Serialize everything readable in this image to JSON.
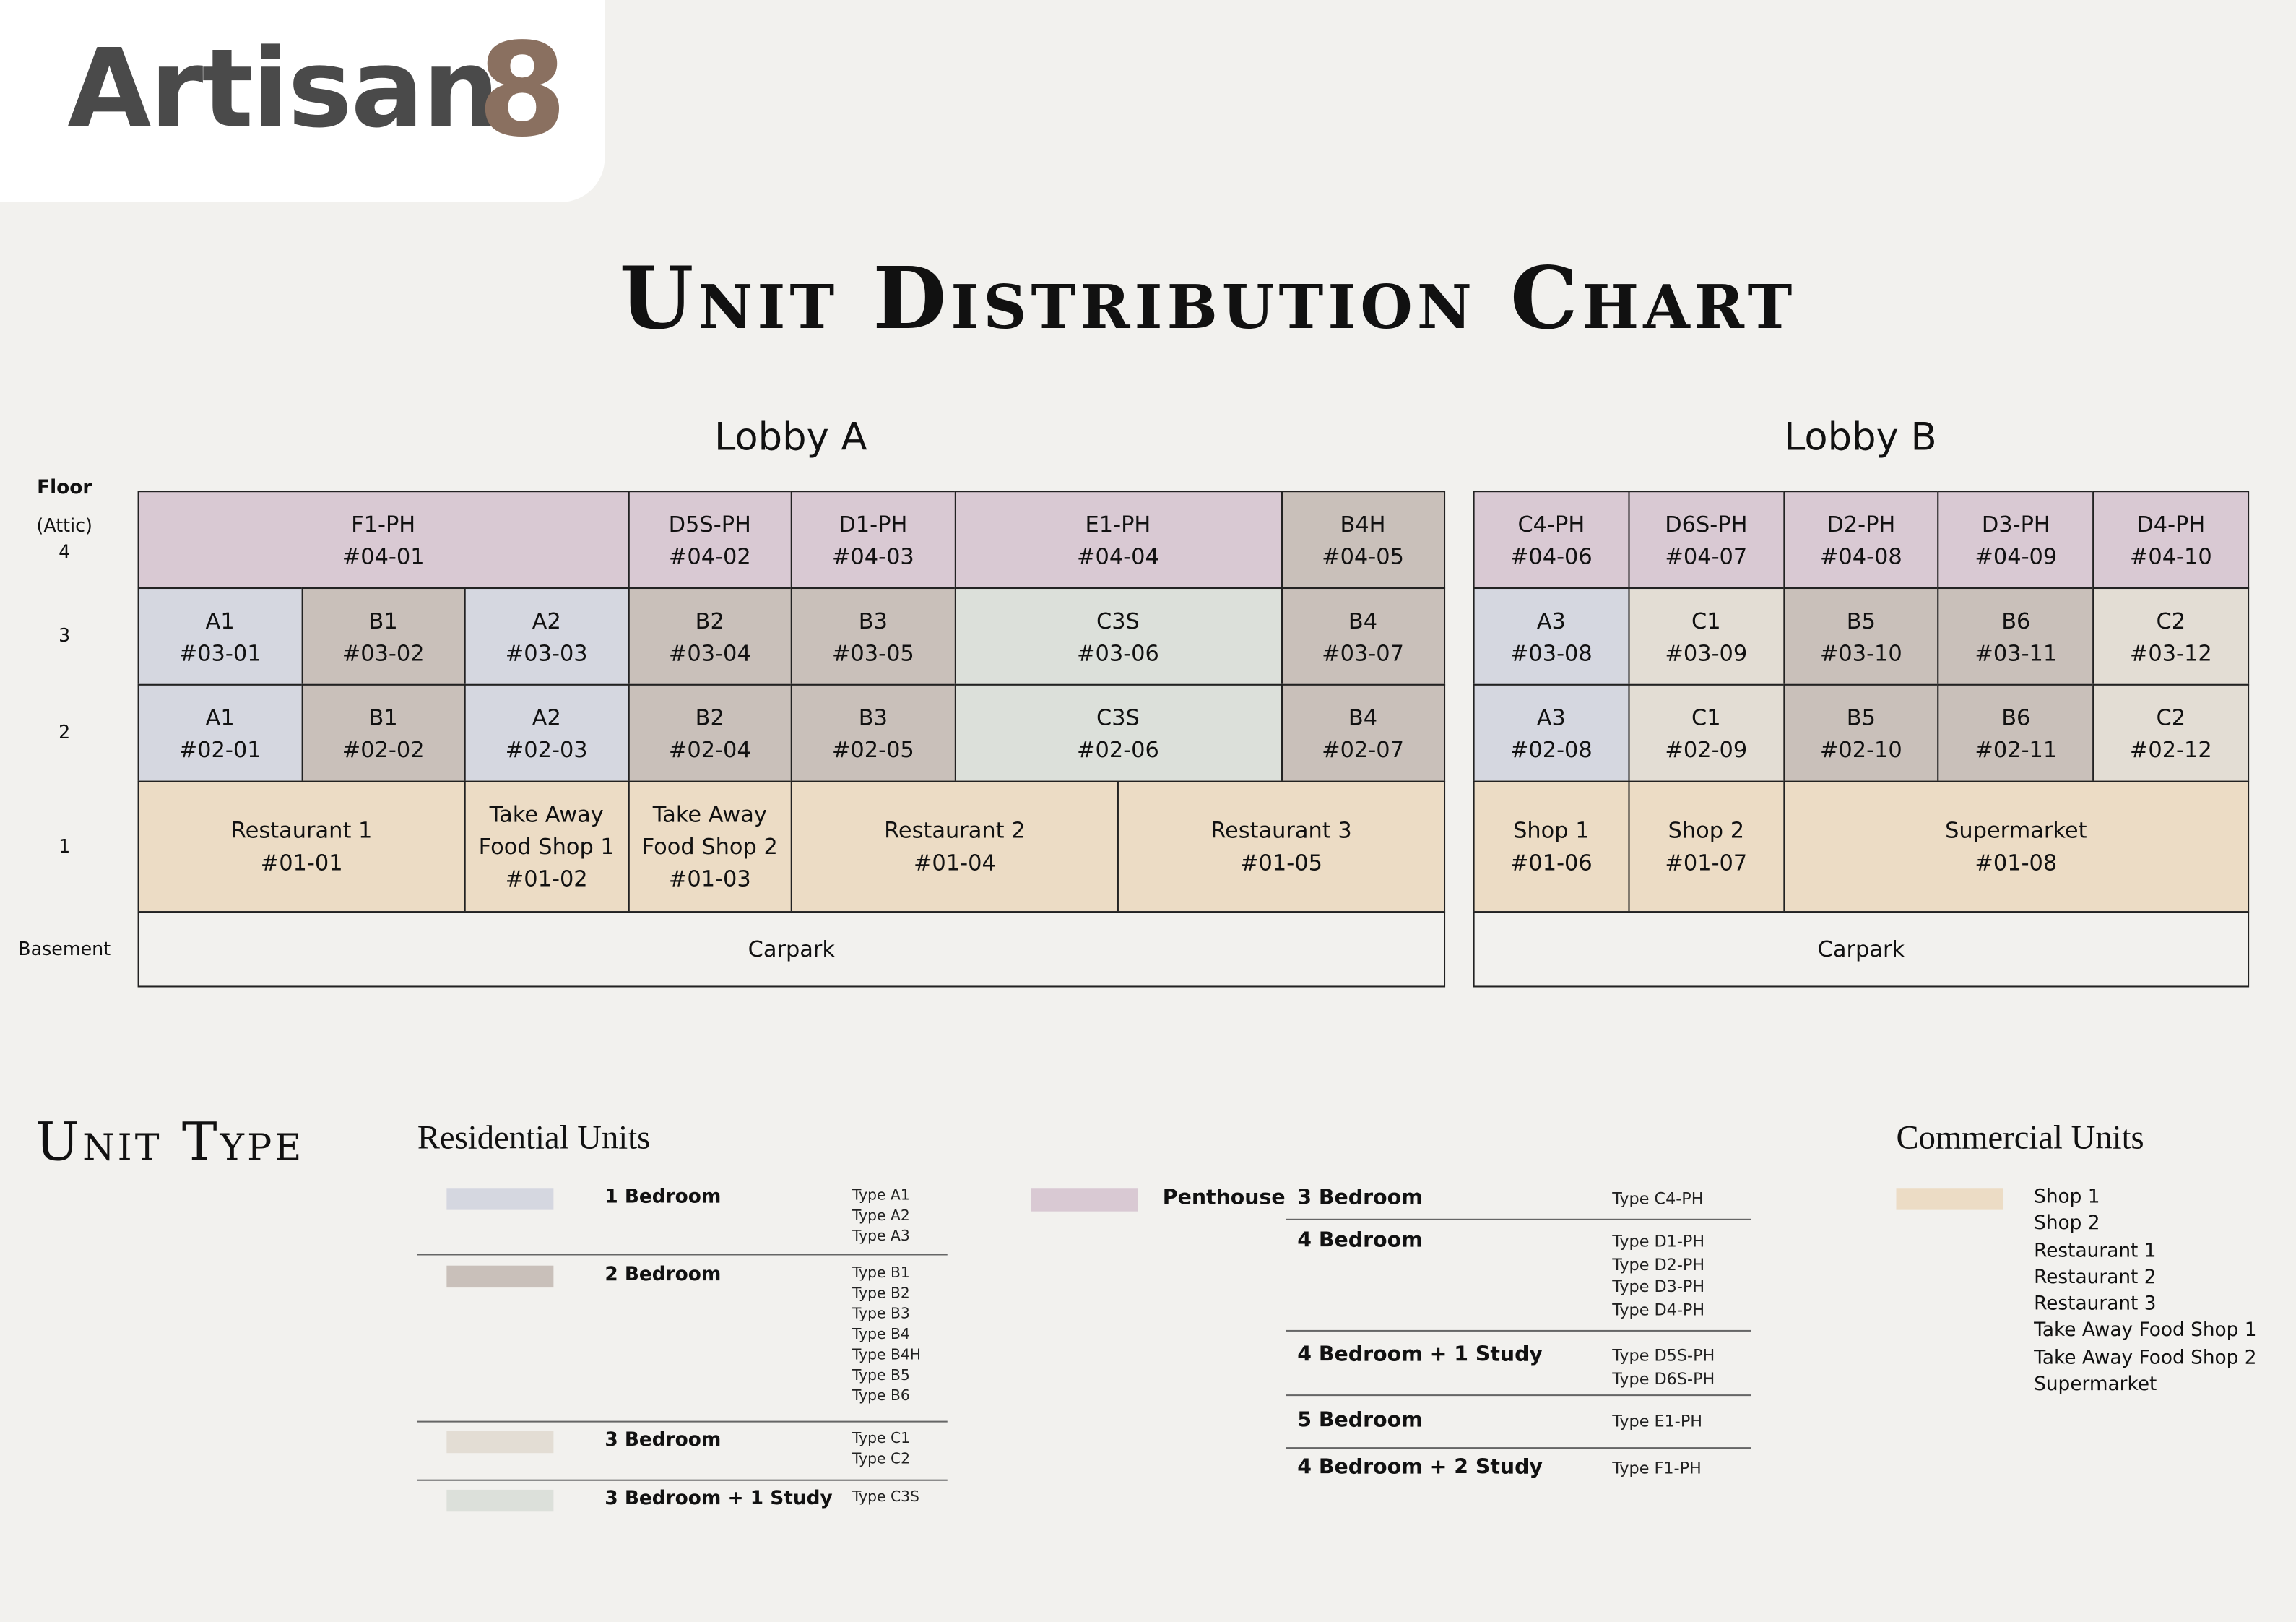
{
  "logo": {
    "text": "Artisan",
    "mark": "8"
  },
  "title": "Unit Distribution Chart",
  "floor_header": "Floor",
  "floors": [
    [
      "(Attic)",
      "4"
    ],
    [
      "3"
    ],
    [
      "2"
    ],
    [
      "1"
    ],
    [
      "Basement"
    ]
  ],
  "lobbies": [
    {
      "name": "Lobby A",
      "rows": [
        [
          {
            "name": "F1-PH",
            "unit": "#04-01",
            "color": "#d9c9d3"
          },
          {
            "name": "D5S-PH",
            "unit": "#04-02",
            "color": "#d9c9d3"
          },
          {
            "name": "D1-PH",
            "unit": "#04-03",
            "color": "#d9c9d3"
          },
          {
            "name": "E1-PH",
            "unit": "#04-04",
            "color": "#d9c9d3"
          },
          {
            "name": "B4H",
            "unit": "#04-05",
            "color": "#c9c0ba"
          }
        ],
        [
          {
            "name": "A1",
            "unit": "#03-01",
            "color": "#d5d7e0"
          },
          {
            "name": "B1",
            "unit": "#03-02",
            "color": "#c9c0ba"
          },
          {
            "name": "A2",
            "unit": "#03-03",
            "color": "#d5d7e0"
          },
          {
            "name": "B2",
            "unit": "#03-04",
            "color": "#c9c0ba"
          },
          {
            "name": "B3",
            "unit": "#03-05",
            "color": "#c9c0ba"
          },
          {
            "name": "C3S",
            "unit": "#03-06",
            "color": "#dce0da"
          },
          {
            "name": "B4",
            "unit": "#03-07",
            "color": "#c9c0ba"
          }
        ],
        [
          {
            "name": "A1",
            "unit": "#02-01",
            "color": "#d5d7e0"
          },
          {
            "name": "B1",
            "unit": "#02-02",
            "color": "#c9c0ba"
          },
          {
            "name": "A2",
            "unit": "#02-03",
            "color": "#d5d7e0"
          },
          {
            "name": "B2",
            "unit": "#02-04",
            "color": "#c9c0ba"
          },
          {
            "name": "B3",
            "unit": "#02-05",
            "color": "#c9c0ba"
          },
          {
            "name": "C3S",
            "unit": "#02-06",
            "color": "#dce0da"
          },
          {
            "name": "B4",
            "unit": "#02-07",
            "color": "#c9c0ba"
          }
        ],
        [
          {
            "name": "Restaurant 1",
            "unit": "#01-01",
            "color": "#ecdcc5"
          },
          {
            "name": "Take Away Food Shop 1",
            "unit": "#01-02",
            "color": "#ecdcc5"
          },
          {
            "name": "Take Away Food Shop 2",
            "unit": "#01-03",
            "color": "#ecdcc5"
          },
          {
            "name": "Restaurant 2",
            "unit": "#01-04",
            "color": "#ecdcc5"
          },
          {
            "name": "Restaurant 3",
            "unit": "#01-05",
            "color": "#ecdcc5"
          }
        ],
        [
          {
            "name": "Carpark",
            "color": "#f2f1ee"
          }
        ]
      ]
    },
    {
      "name": "Lobby B",
      "rows": [
        [
          {
            "name": "C4-PH",
            "unit": "#04-06",
            "color": "#d9c9d3"
          },
          {
            "name": "D6S-PH",
            "unit": "#04-07",
            "color": "#d9c9d3"
          },
          {
            "name": "D2-PH",
            "unit": "#04-08",
            "color": "#d9c9d3"
          },
          {
            "name": "D3-PH",
            "unit": "#04-09",
            "color": "#d9c9d3"
          },
          {
            "name": "D4-PH",
            "unit": "#04-10",
            "color": "#d9c9d3"
          }
        ],
        [
          {
            "name": "A3",
            "unit": "#03-08",
            "color": "#d5d7e0"
          },
          {
            "name": "C1",
            "unit": "#03-09",
            "color": "#e3ddd4"
          },
          {
            "name": "B5",
            "unit": "#03-10",
            "color": "#c9c0ba"
          },
          {
            "name": "B6",
            "unit": "#03-11",
            "color": "#c9c0ba"
          },
          {
            "name": "C2",
            "unit": "#03-12",
            "color": "#e3ddd4"
          }
        ],
        [
          {
            "name": "A3",
            "unit": "#02-08",
            "color": "#d5d7e0"
          },
          {
            "name": "C1",
            "unit": "#02-09",
            "color": "#e3ddd4"
          },
          {
            "name": "B5",
            "unit": "#02-10",
            "color": "#c9c0ba"
          },
          {
            "name": "B6",
            "unit": "#02-11",
            "color": "#c9c0ba"
          },
          {
            "name": "C2",
            "unit": "#02-12",
            "color": "#e3ddd4"
          }
        ],
        [
          {
            "name": "Shop 1",
            "unit": "#01-06",
            "color": "#ecdcc5"
          },
          {
            "name": "Shop 2",
            "unit": "#01-07",
            "color": "#ecdcc5"
          },
          {
            "name": "Supermarket",
            "unit": "#01-08",
            "color": "#ecdcc5"
          }
        ],
        [
          {
            "name": "Carpark",
            "color": "#f2f1ee"
          }
        ]
      ]
    }
  ],
  "legend_title": "Unit Type",
  "residential": {
    "title": "Residential Units",
    "groups": [
      {
        "color": "#d5d7e0",
        "label": "1 Bedroom",
        "types": [
          "Type A1",
          "Type A2",
          "Type A3"
        ]
      },
      {
        "color": "#c9c0ba",
        "label": "2 Bedroom",
        "types": [
          "Type B1",
          "Type B2",
          "Type B3",
          "Type B4",
          "Type B4H",
          "Type B5",
          "Type B6"
        ]
      },
      {
        "color": "#e3ddd4",
        "label": "3 Bedroom",
        "types": [
          "Type C1",
          "Type C2"
        ]
      },
      {
        "color": "#dce0da",
        "label": "3 Bedroom + 1 Study",
        "types": [
          "Type C3S"
        ]
      }
    ]
  },
  "penthouse": {
    "color": "#d9c9d3",
    "label": "Penthouse",
    "groups": [
      {
        "label": "3 Bedroom",
        "types": [
          "Type C4-PH"
        ]
      },
      {
        "label": "4 Bedroom",
        "types": [
          "Type D1-PH",
          "Type D2-PH",
          "Type D3-PH",
          "Type D4-PH"
        ]
      },
      {
        "label": "4 Bedroom + 1 Study",
        "types": [
          "Type D5S-PH",
          "Type D6S-PH"
        ]
      },
      {
        "label": "5 Bedroom",
        "types": [
          "Type E1-PH"
        ]
      },
      {
        "label": "4 Bedroom + 2 Study",
        "types": [
          "Type F1-PH"
        ]
      }
    ]
  },
  "commercial": {
    "title": "Commercial Units",
    "color": "#ecdcc5",
    "items": [
      "Shop 1",
      "Shop 2",
      "Restaurant 1",
      "Restaurant 2",
      "Restaurant 3",
      "Take Away Food Shop 1",
      "Take Away Food Shop 2",
      "Supermarket"
    ]
  }
}
